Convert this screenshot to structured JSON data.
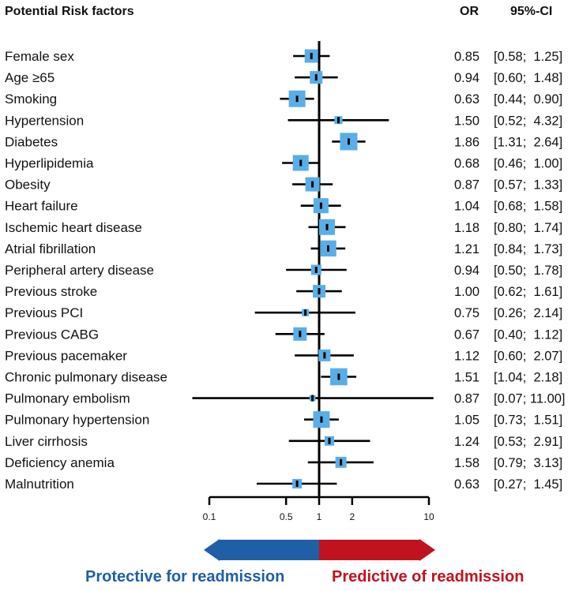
{
  "headers": {
    "factor": "Potential Risk factors",
    "or": "OR",
    "ci": "95%-CI"
  },
  "colors": {
    "box": "#5aaee8",
    "protective": "#1f5fa6",
    "predictive": "#c1121f"
  },
  "arrow_labels": {
    "protective": "Protective for readmission",
    "predictive": "Predictive of readmission"
  },
  "chart_data": {
    "type": "forest",
    "xscale": "log",
    "xlim": [
      0.1,
      10
    ],
    "reference_line": 1,
    "xticks": [
      0.1,
      0.5,
      1,
      2,
      10
    ],
    "xtick_labels": [
      "0.1",
      "0.5",
      "1",
      "2",
      "10"
    ],
    "rows": [
      {
        "label": "Female sex",
        "or": 0.85,
        "lo": 0.58,
        "hi": 1.25,
        "or_text": "0.85",
        "ci_text": "[0.58;  1.25]",
        "weight": 0.55
      },
      {
        "label": "Age ≥65",
        "or": 0.94,
        "lo": 0.6,
        "hi": 1.48,
        "or_text": "0.94",
        "ci_text": "[0.60;  1.48]",
        "weight": 0.5
      },
      {
        "label": "Smoking",
        "or": 0.63,
        "lo": 0.44,
        "hi": 0.9,
        "or_text": "0.63",
        "ci_text": "[0.44;  0.90]",
        "weight": 0.75
      },
      {
        "label": "Hypertension",
        "or": 1.5,
        "lo": 0.52,
        "hi": 4.32,
        "or_text": "1.50",
        "ci_text": "[0.52;  4.32]",
        "weight": 0.2
      },
      {
        "label": "Diabetes",
        "or": 1.86,
        "lo": 1.31,
        "hi": 2.64,
        "or_text": "1.86",
        "ci_text": "[1.31;  2.64]",
        "weight": 0.8
      },
      {
        "label": "Hyperlipidemia",
        "or": 0.68,
        "lo": 0.46,
        "hi": 1.0,
        "or_text": "0.68",
        "ci_text": "[0.46;  1.00]",
        "weight": 0.7
      },
      {
        "label": "Obesity",
        "or": 0.87,
        "lo": 0.57,
        "hi": 1.33,
        "or_text": "0.87",
        "ci_text": "[0.57;  1.33]",
        "weight": 0.6
      },
      {
        "label": "Heart failure",
        "or": 1.04,
        "lo": 0.68,
        "hi": 1.58,
        "or_text": "1.04",
        "ci_text": "[0.68;  1.58]",
        "weight": 0.65
      },
      {
        "label": "Ischemic heart disease",
        "or": 1.18,
        "lo": 0.8,
        "hi": 1.74,
        "or_text": "1.18",
        "ci_text": "[0.80;  1.74]",
        "weight": 0.7
      },
      {
        "label": "Atrial fibrillation",
        "or": 1.21,
        "lo": 0.84,
        "hi": 1.73,
        "or_text": "1.21",
        "ci_text": "[0.84;  1.73]",
        "weight": 0.72
      },
      {
        "label": "Peripheral artery disease",
        "or": 0.94,
        "lo": 0.5,
        "hi": 1.78,
        "or_text": "0.94",
        "ci_text": "[0.50;  1.78]",
        "weight": 0.35
      },
      {
        "label": "Previous stroke",
        "or": 1.0,
        "lo": 0.62,
        "hi": 1.61,
        "or_text": "1.00",
        "ci_text": "[0.62;  1.61]",
        "weight": 0.5
      },
      {
        "label": "Previous PCI",
        "or": 0.75,
        "lo": 0.26,
        "hi": 2.14,
        "or_text": "0.75",
        "ci_text": "[0.26;  2.14]",
        "weight": 0.15
      },
      {
        "label": "Previous CABG",
        "or": 0.67,
        "lo": 0.4,
        "hi": 1.12,
        "or_text": "0.67",
        "ci_text": "[0.40;  1.12]",
        "weight": 0.55
      },
      {
        "label": "Previous pacemaker",
        "or": 1.12,
        "lo": 0.6,
        "hi": 2.07,
        "or_text": "1.12",
        "ci_text": "[0.60;  2.07]",
        "weight": 0.45
      },
      {
        "label": "Chronic pulmonary disease",
        "or": 1.51,
        "lo": 1.04,
        "hi": 2.18,
        "or_text": "1.51",
        "ci_text": "[1.04;  2.18]",
        "weight": 0.78
      },
      {
        "label": "Pulmonary embolism",
        "or": 0.87,
        "lo": 0.07,
        "hi": 11.0,
        "or_text": "0.87",
        "ci_text": "[0.07; 11.00]",
        "weight": 0.08
      },
      {
        "label": "Pulmonary hypertension",
        "or": 1.05,
        "lo": 0.73,
        "hi": 1.51,
        "or_text": "1.05",
        "ci_text": "[0.73;  1.51]",
        "weight": 0.75
      },
      {
        "label": "Liver cirrhosis",
        "or": 1.24,
        "lo": 0.53,
        "hi": 2.91,
        "or_text": "1.24",
        "ci_text": "[0.53;  2.91]",
        "weight": 0.3
      },
      {
        "label": "Deficiency anemia",
        "or": 1.58,
        "lo": 0.79,
        "hi": 3.13,
        "or_text": "1.58",
        "ci_text": "[0.79;  3.13]",
        "weight": 0.4
      },
      {
        "label": "Malnutrition",
        "or": 0.63,
        "lo": 0.27,
        "hi": 1.45,
        "or_text": "0.63",
        "ci_text": "[0.27;  1.45]",
        "weight": 0.3
      }
    ]
  }
}
